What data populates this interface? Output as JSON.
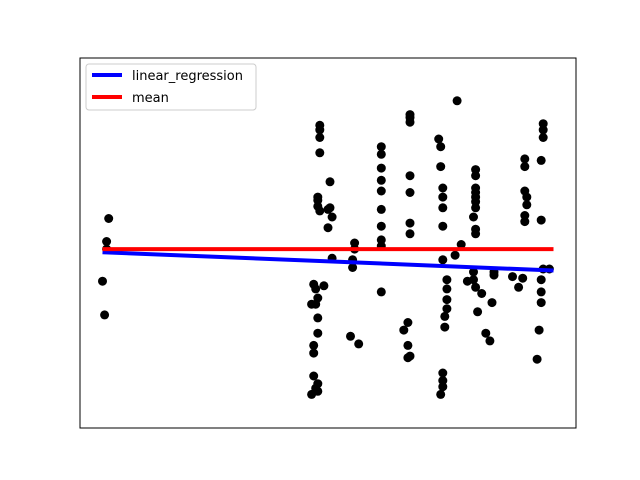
{
  "chart_data": {
    "type": "scatter",
    "title": "",
    "xlabel": "",
    "ylabel": "",
    "axes_ticks_shown": false,
    "grid": false,
    "legend_placement": "top-left",
    "xlim": [
      -1.1,
      23.1
    ],
    "ylim": [
      -1.1,
      23.1
    ],
    "points_color": "#000000",
    "points": [
      {
        "x": 0.0,
        "y": 8.5
      },
      {
        "x": 0.1,
        "y": 6.3
      },
      {
        "x": 0.2,
        "y": 10.6
      },
      {
        "x": 0.2,
        "y": 11.1
      },
      {
        "x": 0.3,
        "y": 12.6
      },
      {
        "x": 10.2,
        "y": 1.1
      },
      {
        "x": 10.2,
        "y": 7.0
      },
      {
        "x": 10.3,
        "y": 2.3
      },
      {
        "x": 10.3,
        "y": 3.8
      },
      {
        "x": 10.3,
        "y": 4.3
      },
      {
        "x": 10.3,
        "y": 8.3
      },
      {
        "x": 10.4,
        "y": 1.5
      },
      {
        "x": 10.4,
        "y": 7.0
      },
      {
        "x": 10.4,
        "y": 8.0
      },
      {
        "x": 10.5,
        "y": 1.8
      },
      {
        "x": 10.5,
        "y": 1.3
      },
      {
        "x": 10.5,
        "y": 5.1
      },
      {
        "x": 10.5,
        "y": 6.1
      },
      {
        "x": 10.5,
        "y": 7.4
      },
      {
        "x": 10.5,
        "y": 13.4
      },
      {
        "x": 10.5,
        "y": 13.8
      },
      {
        "x": 10.5,
        "y": 14.0
      },
      {
        "x": 10.6,
        "y": 16.9
      },
      {
        "x": 10.6,
        "y": 17.9
      },
      {
        "x": 10.6,
        "y": 18.4
      },
      {
        "x": 10.6,
        "y": 18.7
      },
      {
        "x": 10.6,
        "y": 13.1
      },
      {
        "x": 10.8,
        "y": 8.2
      },
      {
        "x": 11.0,
        "y": 12.0
      },
      {
        "x": 11.0,
        "y": 13.2
      },
      {
        "x": 11.1,
        "y": 13.3
      },
      {
        "x": 11.1,
        "y": 15.0
      },
      {
        "x": 11.2,
        "y": 12.7
      },
      {
        "x": 11.2,
        "y": 10.0
      },
      {
        "x": 12.1,
        "y": 4.9
      },
      {
        "x": 12.2,
        "y": 9.4
      },
      {
        "x": 12.2,
        "y": 9.9
      },
      {
        "x": 12.3,
        "y": 10.6
      },
      {
        "x": 12.3,
        "y": 11.0
      },
      {
        "x": 12.5,
        "y": 4.4
      },
      {
        "x": 13.6,
        "y": 7.8
      },
      {
        "x": 13.6,
        "y": 10.8
      },
      {
        "x": 13.6,
        "y": 11.2
      },
      {
        "x": 13.6,
        "y": 12.1
      },
      {
        "x": 13.6,
        "y": 13.2
      },
      {
        "x": 13.6,
        "y": 14.4
      },
      {
        "x": 13.6,
        "y": 15.1
      },
      {
        "x": 13.6,
        "y": 15.9
      },
      {
        "x": 13.6,
        "y": 16.8
      },
      {
        "x": 13.6,
        "y": 17.3
      },
      {
        "x": 14.7,
        "y": 5.3
      },
      {
        "x": 14.9,
        "y": 3.5
      },
      {
        "x": 14.9,
        "y": 4.3
      },
      {
        "x": 14.9,
        "y": 5.8
      },
      {
        "x": 15.0,
        "y": 3.6
      },
      {
        "x": 15.0,
        "y": 11.6
      },
      {
        "x": 15.0,
        "y": 12.3
      },
      {
        "x": 15.0,
        "y": 14.3
      },
      {
        "x": 15.0,
        "y": 15.4
      },
      {
        "x": 15.0,
        "y": 18.9
      },
      {
        "x": 15.0,
        "y": 19.2
      },
      {
        "x": 15.0,
        "y": 19.4
      },
      {
        "x": 16.5,
        "y": 1.1
      },
      {
        "x": 16.6,
        "y": 2.0
      },
      {
        "x": 16.6,
        "y": 1.6
      },
      {
        "x": 16.6,
        "y": 2.5
      },
      {
        "x": 16.7,
        "y": 5.5
      },
      {
        "x": 16.7,
        "y": 6.2
      },
      {
        "x": 16.8,
        "y": 6.7
      },
      {
        "x": 16.8,
        "y": 7.3
      },
      {
        "x": 16.8,
        "y": 8.0
      },
      {
        "x": 16.8,
        "y": 8.6
      },
      {
        "x": 16.6,
        "y": 9.9
      },
      {
        "x": 16.6,
        "y": 12.1
      },
      {
        "x": 16.6,
        "y": 13.3
      },
      {
        "x": 16.6,
        "y": 14.0
      },
      {
        "x": 16.6,
        "y": 14.6
      },
      {
        "x": 16.5,
        "y": 16.0
      },
      {
        "x": 16.5,
        "y": 17.3
      },
      {
        "x": 16.4,
        "y": 17.8
      },
      {
        "x": 17.2,
        "y": 10.2
      },
      {
        "x": 17.5,
        "y": 10.9
      },
      {
        "x": 17.3,
        "y": 20.3
      },
      {
        "x": 17.8,
        "y": 8.5
      },
      {
        "x": 18.1,
        "y": 8.6
      },
      {
        "x": 18.1,
        "y": 9.1
      },
      {
        "x": 18.1,
        "y": 12.7
      },
      {
        "x": 18.2,
        "y": 13.3
      },
      {
        "x": 18.2,
        "y": 13.7
      },
      {
        "x": 18.2,
        "y": 14.0
      },
      {
        "x": 18.2,
        "y": 14.3
      },
      {
        "x": 18.2,
        "y": 14.6
      },
      {
        "x": 18.2,
        "y": 15.4
      },
      {
        "x": 18.2,
        "y": 15.8
      },
      {
        "x": 18.2,
        "y": 11.6
      },
      {
        "x": 18.2,
        "y": 11.9
      },
      {
        "x": 18.2,
        "y": 8.1
      },
      {
        "x": 18.3,
        "y": 6.5
      },
      {
        "x": 18.5,
        "y": 7.7
      },
      {
        "x": 18.7,
        "y": 5.1
      },
      {
        "x": 18.9,
        "y": 4.6
      },
      {
        "x": 19.0,
        "y": 7.1
      },
      {
        "x": 19.1,
        "y": 9.1
      },
      {
        "x": 19.1,
        "y": 8.9
      },
      {
        "x": 20.0,
        "y": 8.8
      },
      {
        "x": 20.3,
        "y": 8.1
      },
      {
        "x": 20.5,
        "y": 8.7
      },
      {
        "x": 20.6,
        "y": 12.4
      },
      {
        "x": 20.6,
        "y": 12.8
      },
      {
        "x": 20.6,
        "y": 14.4
      },
      {
        "x": 20.6,
        "y": 16.0
      },
      {
        "x": 20.6,
        "y": 16.5
      },
      {
        "x": 20.7,
        "y": 13.5
      },
      {
        "x": 20.7,
        "y": 14.0
      },
      {
        "x": 21.2,
        "y": 3.4
      },
      {
        "x": 21.3,
        "y": 5.3
      },
      {
        "x": 21.4,
        "y": 7.1
      },
      {
        "x": 21.4,
        "y": 7.8
      },
      {
        "x": 21.4,
        "y": 8.6
      },
      {
        "x": 21.4,
        "y": 12.5
      },
      {
        "x": 21.4,
        "y": 16.4
      },
      {
        "x": 21.5,
        "y": 17.9
      },
      {
        "x": 21.5,
        "y": 18.4
      },
      {
        "x": 21.5,
        "y": 18.8
      },
      {
        "x": 21.5,
        "y": 9.3
      },
      {
        "x": 21.8,
        "y": 9.3
      }
    ],
    "series": [
      {
        "name": "linear_regression",
        "type": "line",
        "color": "#0000ff",
        "x": [
          0.0,
          22.0
        ],
        "y": [
          10.4,
          9.2
        ]
      },
      {
        "name": "mean",
        "type": "line",
        "color": "#ff0000",
        "x": [
          0.0,
          22.0
        ],
        "y": [
          10.6,
          10.6
        ]
      }
    ]
  }
}
